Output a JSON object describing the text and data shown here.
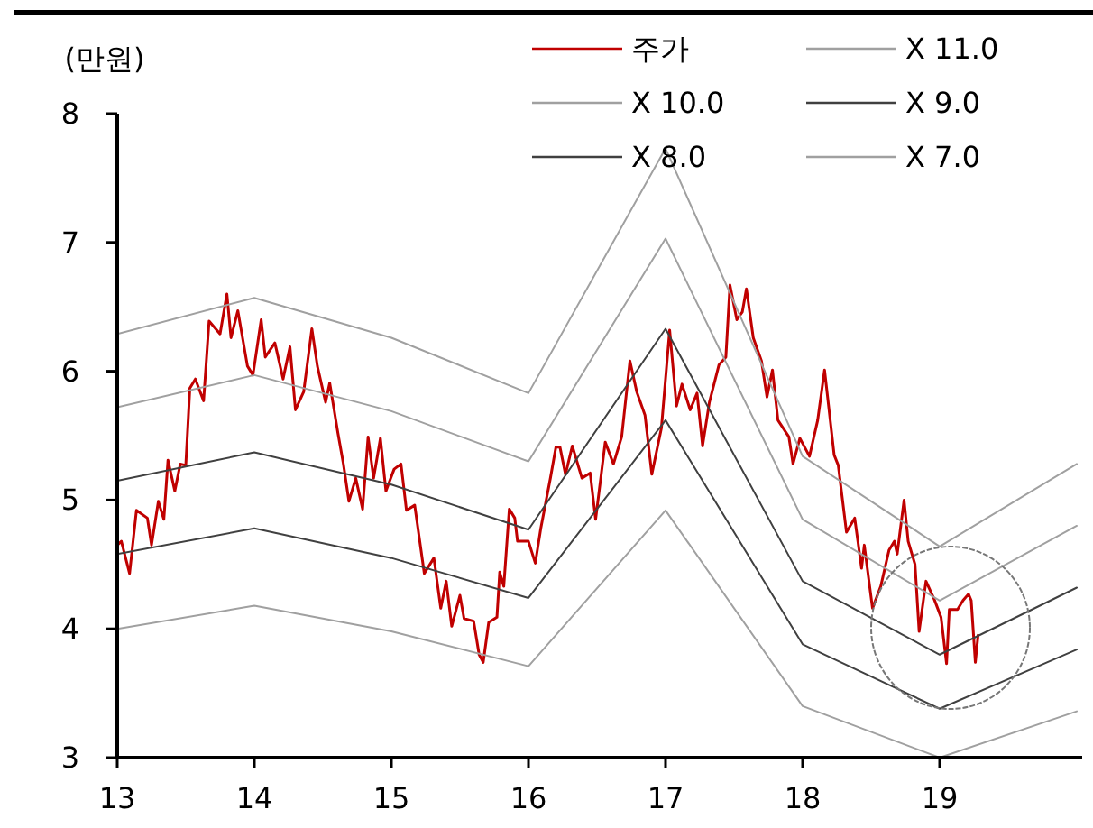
{
  "chart_data": {
    "type": "line",
    "ylabel": "(만원)",
    "xlim": [
      13,
      20
    ],
    "xticks": [
      13,
      14,
      15,
      16,
      17,
      18,
      19
    ],
    "ylim": [
      3,
      8
    ],
    "yticks": [
      3,
      4,
      5,
      6,
      7,
      8
    ],
    "grid": false,
    "legend": "top right",
    "marker": "none",
    "line_style": "solid",
    "series": [
      {
        "name": "주가",
        "color": "#c00000",
        "x": [
          13.0,
          13.03,
          13.09,
          13.14,
          13.22,
          13.25,
          13.3,
          13.34,
          13.37,
          13.42,
          13.46,
          13.5,
          13.53,
          13.57,
          13.63,
          13.67,
          13.75,
          13.8,
          13.83,
          13.88,
          13.95,
          13.99,
          14.05,
          14.08,
          14.15,
          14.21,
          14.26,
          14.3,
          14.36,
          14.42,
          14.46,
          14.52,
          14.55,
          14.61,
          14.65,
          14.69,
          14.74,
          14.79,
          14.83,
          14.87,
          14.92,
          14.96,
          15.02,
          15.07,
          15.11,
          15.17,
          15.24,
          15.31,
          15.36,
          15.4,
          15.44,
          15.5,
          15.53,
          15.6,
          15.64,
          15.67,
          15.71,
          15.77,
          15.79,
          15.82,
          15.86,
          15.9,
          15.92,
          16.0,
          16.05,
          16.09,
          16.16,
          16.2,
          16.23,
          16.27,
          16.32,
          16.39,
          16.45,
          16.49,
          16.56,
          16.62,
          16.68,
          16.74,
          16.79,
          16.85,
          16.9,
          16.97,
          17.03,
          17.08,
          17.12,
          17.18,
          17.23,
          17.27,
          17.32,
          17.39,
          17.44,
          17.47,
          17.52,
          17.56,
          17.59,
          17.64,
          17.7,
          17.74,
          17.78,
          17.82,
          17.9,
          17.93,
          17.98,
          18.05,
          18.11,
          18.16,
          18.23,
          18.26,
          18.32,
          18.38,
          18.43,
          18.45,
          18.51,
          18.57,
          18.63,
          18.67,
          18.69,
          18.74,
          18.77,
          18.82,
          18.85,
          18.9,
          18.96,
          19.01,
          19.05,
          19.07,
          19.13,
          19.17,
          19.21,
          19.23,
          19.26,
          19.28
        ],
        "values": [
          4.65,
          4.68,
          4.43,
          4.92,
          4.86,
          4.65,
          4.99,
          4.85,
          5.31,
          5.07,
          5.28,
          5.27,
          5.87,
          5.94,
          5.77,
          6.39,
          6.29,
          6.6,
          6.26,
          6.47,
          6.04,
          5.97,
          6.4,
          6.11,
          6.22,
          5.94,
          6.19,
          5.7,
          5.84,
          6.33,
          6.04,
          5.76,
          5.91,
          5.52,
          5.28,
          4.99,
          5.17,
          4.93,
          5.49,
          5.17,
          5.48,
          5.07,
          5.24,
          5.28,
          4.92,
          4.96,
          4.43,
          4.55,
          4.16,
          4.37,
          4.02,
          4.26,
          4.08,
          4.06,
          3.8,
          3.74,
          4.05,
          4.09,
          4.44,
          4.33,
          4.93,
          4.86,
          4.68,
          4.68,
          4.51,
          4.78,
          5.17,
          5.41,
          5.41,
          5.2,
          5.42,
          5.17,
          5.21,
          4.85,
          5.45,
          5.28,
          5.49,
          6.08,
          5.84,
          5.66,
          5.2,
          5.56,
          6.32,
          5.73,
          5.9,
          5.7,
          5.83,
          5.42,
          5.76,
          6.05,
          6.11,
          6.67,
          6.4,
          6.46,
          6.64,
          6.26,
          6.08,
          5.8,
          6.01,
          5.62,
          5.49,
          5.28,
          5.48,
          5.34,
          5.62,
          6.01,
          5.35,
          5.27,
          4.75,
          4.86,
          4.47,
          4.65,
          4.16,
          4.33,
          4.61,
          4.68,
          4.58,
          5.0,
          4.68,
          4.5,
          3.98,
          4.37,
          4.23,
          4.09,
          3.73,
          4.15,
          4.15,
          4.22,
          4.27,
          4.22,
          3.74,
          3.95
        ]
      },
      {
        "name": "X 11.0",
        "color": "#a0a0a0",
        "x": [
          13,
          14,
          15,
          16,
          17,
          18,
          19,
          20
        ],
        "values": [
          6.29,
          6.57,
          6.26,
          5.83,
          7.73,
          5.34,
          4.64,
          5.28
        ]
      },
      {
        "name": "X 10.0",
        "color": "#a0a0a0",
        "x": [
          13,
          14,
          15,
          16,
          17,
          18,
          19,
          20
        ],
        "values": [
          5.72,
          5.97,
          5.69,
          5.3,
          7.03,
          4.85,
          4.22,
          4.8
        ]
      },
      {
        "name": "X 9.0",
        "color": "#404040",
        "x": [
          13,
          14,
          15,
          16,
          17,
          18,
          19,
          20
        ],
        "values": [
          5.15,
          5.37,
          5.12,
          4.77,
          6.33,
          4.37,
          3.8,
          4.32
        ]
      },
      {
        "name": "X 8.0",
        "color": "#404040",
        "x": [
          13,
          14,
          15,
          16,
          17,
          18,
          19,
          20
        ],
        "values": [
          4.58,
          4.78,
          4.55,
          4.24,
          5.62,
          3.88,
          3.38,
          3.84
        ]
      },
      {
        "name": "X 7.0",
        "color": "#a0a0a0",
        "x": [
          13,
          14,
          15,
          16,
          17,
          18,
          19,
          20
        ],
        "values": [
          4.0,
          4.18,
          3.98,
          3.71,
          4.92,
          3.4,
          3.0,
          3.36
        ]
      }
    ]
  }
}
